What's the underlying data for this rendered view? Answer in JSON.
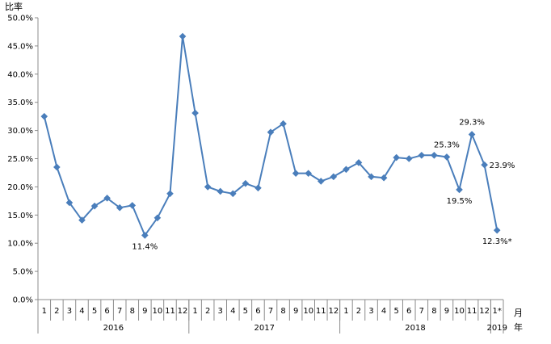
{
  "chart_data": {
    "type": "line",
    "ylabel": "比率",
    "xlabel_line1": "月",
    "xlabel_line2": "年",
    "ylim": [
      0,
      50
    ],
    "ytick_labels": [
      "0.0%",
      "5.0%",
      "10.0%",
      "15.0%",
      "20.0%",
      "25.0%",
      "30.0%",
      "35.0%",
      "40.0%",
      "45.0%",
      "50.0%"
    ],
    "grid": false,
    "line_color": "#4a7ebb",
    "months": [
      "1",
      "2",
      "3",
      "4",
      "5",
      "6",
      "7",
      "8",
      "9",
      "10",
      "11",
      "12",
      "1",
      "2",
      "3",
      "4",
      "5",
      "6",
      "7",
      "8",
      "9",
      "10",
      "11",
      "12",
      "1",
      "2",
      "3",
      "4",
      "5",
      "6",
      "7",
      "8",
      "9",
      "10",
      "11",
      "12",
      "1*"
    ],
    "years": [
      {
        "label": "2016",
        "start": 0,
        "end": 11
      },
      {
        "label": "2017",
        "start": 12,
        "end": 23
      },
      {
        "label": "2018",
        "start": 24,
        "end": 35
      },
      {
        "label": "2019",
        "start": 36,
        "end": 36
      }
    ],
    "values": [
      32.5,
      23.5,
      17.2,
      14.1,
      16.6,
      18.0,
      16.3,
      16.7,
      11.4,
      14.5,
      18.8,
      46.7,
      33.1,
      20.0,
      19.2,
      18.8,
      20.6,
      19.8,
      29.7,
      31.2,
      22.4,
      22.4,
      21.0,
      21.8,
      23.1,
      24.3,
      21.8,
      21.6,
      25.2,
      25.0,
      25.6,
      25.6,
      25.3,
      19.5,
      29.3,
      23.9,
      12.3
    ],
    "annotations": [
      {
        "index": 8,
        "text": "11.4%"
      },
      {
        "index": 32,
        "text": "25.3%"
      },
      {
        "index": 33,
        "text": "19.5%"
      },
      {
        "index": 34,
        "text": "29.3%"
      },
      {
        "index": 35,
        "text": "23.9%"
      },
      {
        "index": 36,
        "text": "12.3%*"
      }
    ]
  }
}
